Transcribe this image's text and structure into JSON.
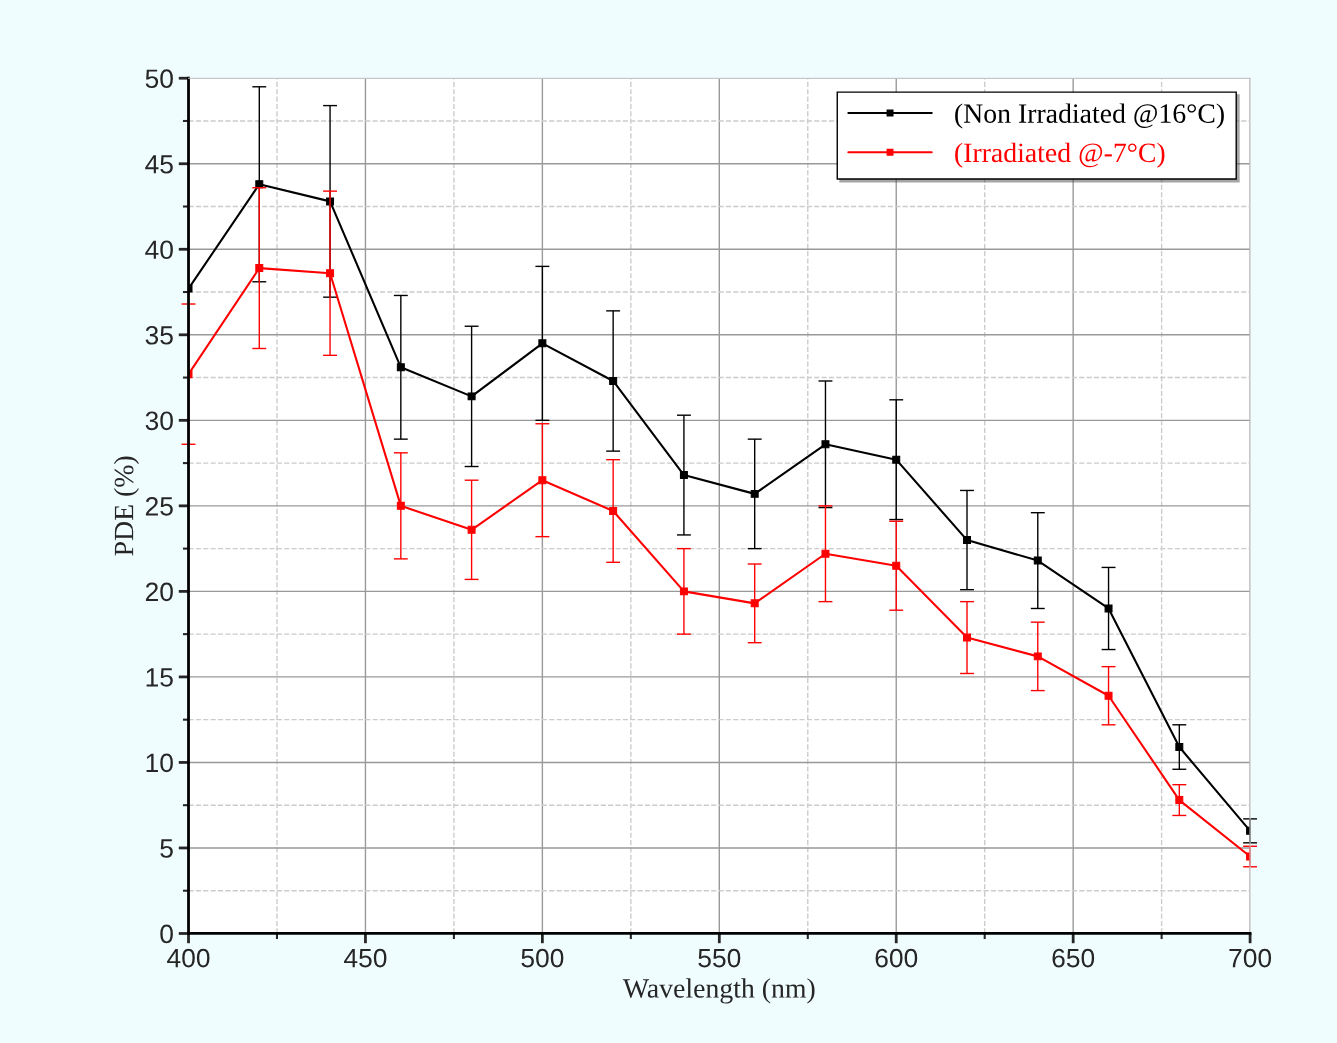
{
  "chart_data": {
    "type": "line",
    "xlabel": "Wavelength (nm)",
    "ylabel": "PDE (%)",
    "x": [
      400,
      420,
      440,
      460,
      480,
      500,
      520,
      540,
      560,
      580,
      600,
      620,
      640,
      660,
      680,
      700
    ],
    "xlim": [
      400,
      700
    ],
    "xticks": [
      400,
      450,
      500,
      550,
      600,
      650,
      700
    ],
    "ylim": [
      0,
      50
    ],
    "yticks": [
      0,
      5,
      10,
      15,
      20,
      25,
      30,
      35,
      40,
      45,
      50
    ],
    "grid": true,
    "legend": "top right",
    "marker": "square",
    "line_style": "solid",
    "series": [
      {
        "name": "(Non Irradiated @16°C)",
        "color": "#000000",
        "values": [
          37.7,
          43.8,
          42.8,
          33.1,
          31.4,
          34.5,
          32.3,
          26.8,
          25.7,
          28.6,
          27.7,
          23.0,
          21.8,
          19.0,
          10.9,
          6.0
        ],
        "errors": [
          null,
          5.7,
          5.6,
          4.2,
          4.1,
          4.5,
          4.1,
          3.5,
          3.2,
          3.7,
          3.5,
          2.9,
          2.8,
          2.4,
          1.3,
          0.7
        ]
      },
      {
        "name": "(Irradiated @-7°C)",
        "color": "#ff0000",
        "values": [
          32.7,
          38.9,
          38.6,
          25.0,
          23.6,
          26.5,
          24.7,
          20.0,
          19.3,
          22.2,
          21.5,
          17.3,
          16.2,
          13.9,
          7.8,
          4.5
        ],
        "errors": [
          4.1,
          4.7,
          4.8,
          3.1,
          2.9,
          3.3,
          3.0,
          2.5,
          2.3,
          2.8,
          2.6,
          2.1,
          2.0,
          1.7,
          0.9,
          0.6
        ]
      }
    ]
  }
}
